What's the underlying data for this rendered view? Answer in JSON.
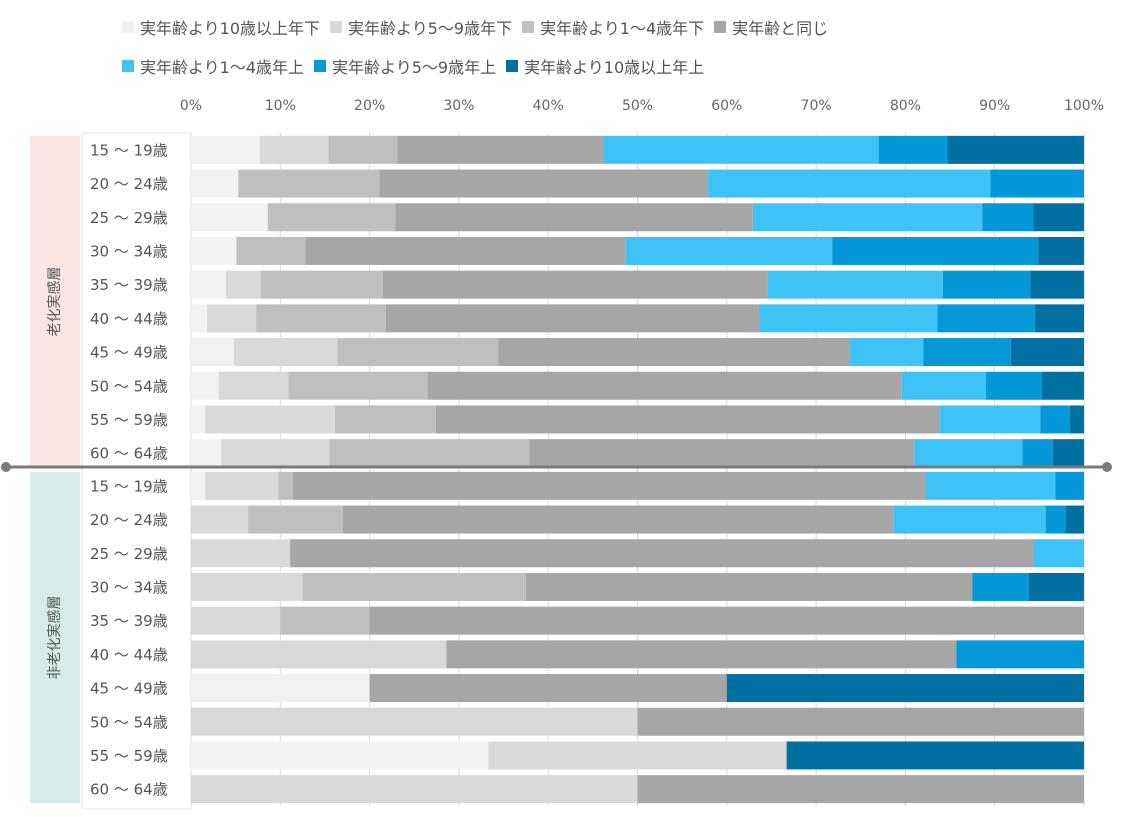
{
  "chart_data": {
    "type": "bar",
    "orientation": "horizontal",
    "stacked": "percent",
    "title": "",
    "xlabel": "",
    "ylabel": "",
    "xlim": [
      0,
      100
    ],
    "x_ticks": [
      "0%",
      "10%",
      "20%",
      "30%",
      "40%",
      "50%",
      "60%",
      "70%",
      "80%",
      "90%",
      "100%"
    ],
    "grid": true,
    "legend_position": "top",
    "legend": [
      {
        "name": "実年齢より10歳以上年下",
        "color": "#f2f2f2"
      },
      {
        "name": "実年齢より5〜9歳年下",
        "color": "#d9d9d9"
      },
      {
        "name": "実年齢より1〜4歳年下",
        "color": "#bfbfbf"
      },
      {
        "name": "実年齢と同じ",
        "color": "#a6a6a6"
      },
      {
        "name": "実年齢より1〜4歳年上",
        "color": "#3fc2f6"
      },
      {
        "name": "実年齢より5〜9歳年上",
        "color": "#0598d8"
      },
      {
        "name": "実年齢より10歳以上年上",
        "color": "#0070a3"
      }
    ],
    "groups": [
      {
        "name": "老化実感層",
        "color": "#fbe5e5",
        "rows": [
          {
            "label": "15 〜 19歳",
            "values": [
              7.7,
              7.7,
              7.7,
              23.1,
              30.8,
              7.7,
              15.3
            ]
          },
          {
            "label": "20 〜 24歳",
            "values": [
              5.3,
              0,
              15.8,
              36.8,
              31.6,
              10.5,
              0
            ]
          },
          {
            "label": "25 〜 29歳",
            "values": [
              8.6,
              0,
              14.3,
              40.0,
              25.7,
              5.7,
              5.7
            ]
          },
          {
            "label": "30 〜 34歳",
            "values": [
              5.1,
              0,
              7.7,
              35.9,
              23.1,
              23.1,
              5.1
            ]
          },
          {
            "label": "35 〜 39歳",
            "values": [
              3.9,
              3.9,
              13.7,
              43.1,
              19.6,
              9.8,
              6.0
            ]
          },
          {
            "label": "40 〜 44歳",
            "values": [
              1.8,
              5.5,
              14.5,
              41.8,
              20.0,
              10.9,
              5.5
            ]
          },
          {
            "label": "45 〜 49歳",
            "values": [
              4.8,
              11.6,
              18.0,
              39.4,
              8.2,
              9.8,
              8.2
            ]
          },
          {
            "label": "50 〜 54歳",
            "values": [
              3.1,
              7.8,
              15.6,
              53.1,
              9.4,
              6.3,
              4.7
            ]
          },
          {
            "label": "55 〜 59歳",
            "values": [
              1.6,
              14.5,
              11.3,
              56.4,
              11.3,
              3.3,
              1.6
            ]
          },
          {
            "label": "60 〜 64歳",
            "values": [
              3.4,
              12.1,
              22.4,
              43.1,
              12.1,
              3.4,
              3.5
            ]
          }
        ]
      },
      {
        "name": "非老化実感層",
        "color": "#d6ece9",
        "rows": [
          {
            "label": "15 〜 19歳",
            "values": [
              1.6,
              8.2,
              1.6,
              70.8,
              14.6,
              3.2,
              0
            ]
          },
          {
            "label": "20 〜 24歳",
            "values": [
              0,
              6.4,
              10.6,
              61.7,
              17.0,
              2.2,
              2.1
            ]
          },
          {
            "label": "25 〜 29歳",
            "values": [
              0,
              11.1,
              0,
              83.3,
              5.6,
              0,
              0
            ]
          },
          {
            "label": "30 〜 34歳",
            "values": [
              0,
              12.5,
              25.0,
              50.0,
              0,
              6.3,
              6.2
            ]
          },
          {
            "label": "35 〜 39歳",
            "values": [
              0,
              10.0,
              10.0,
              80.0,
              0,
              0,
              0
            ]
          },
          {
            "label": "40 〜 44歳",
            "values": [
              0,
              28.6,
              0,
              57.1,
              0,
              14.3,
              0
            ]
          },
          {
            "label": "45 〜 49歳",
            "values": [
              20.0,
              0,
              0,
              40.0,
              0,
              0,
              40.0
            ]
          },
          {
            "label": "50 〜 54歳",
            "values": [
              0,
              50.0,
              0,
              50.0,
              0,
              0,
              0
            ]
          },
          {
            "label": "55 〜 59歳",
            "values": [
              33.3,
              33.4,
              0,
              0,
              0,
              0,
              33.3
            ]
          },
          {
            "label": "60 〜 64歳",
            "values": [
              0,
              50.0,
              0,
              50.0,
              0,
              0,
              0
            ]
          }
        ]
      }
    ]
  }
}
